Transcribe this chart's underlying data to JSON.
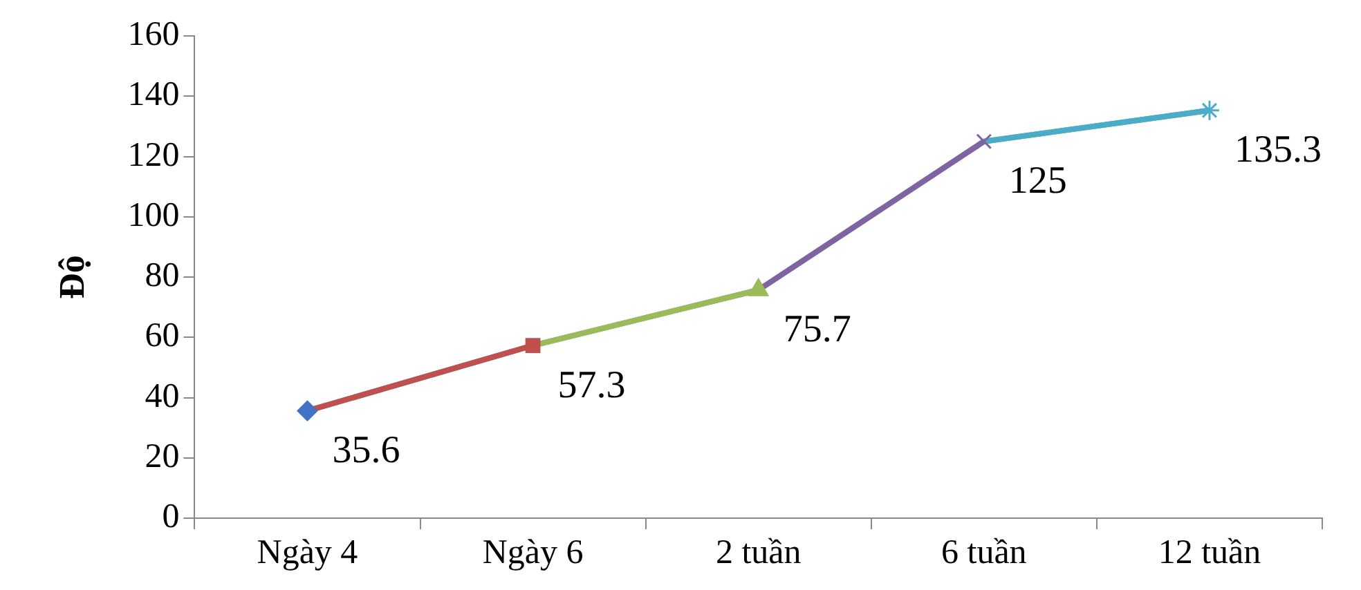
{
  "chart_data": {
    "type": "line",
    "ylabel": "Độ",
    "categories": [
      "Ngày 4",
      "Ngày 6",
      "2 tuần",
      "6 tuần",
      "12 tuần"
    ],
    "series": [
      {
        "values": [
          35.6,
          57.3,
          75.7,
          125,
          135.3
        ],
        "colors": [
          "#4472c4",
          "#c0504d",
          "#9bbb59",
          "#8064a2",
          "#4bacc6"
        ],
        "marker": [
          "diamond",
          "square",
          "triangle",
          "cross",
          "star"
        ]
      }
    ],
    "ylim": [
      0,
      160
    ],
    "yticks": [
      0,
      20,
      40,
      60,
      80,
      100,
      120,
      140,
      160
    ],
    "grid": false,
    "legend": false,
    "data_labels": true
  }
}
